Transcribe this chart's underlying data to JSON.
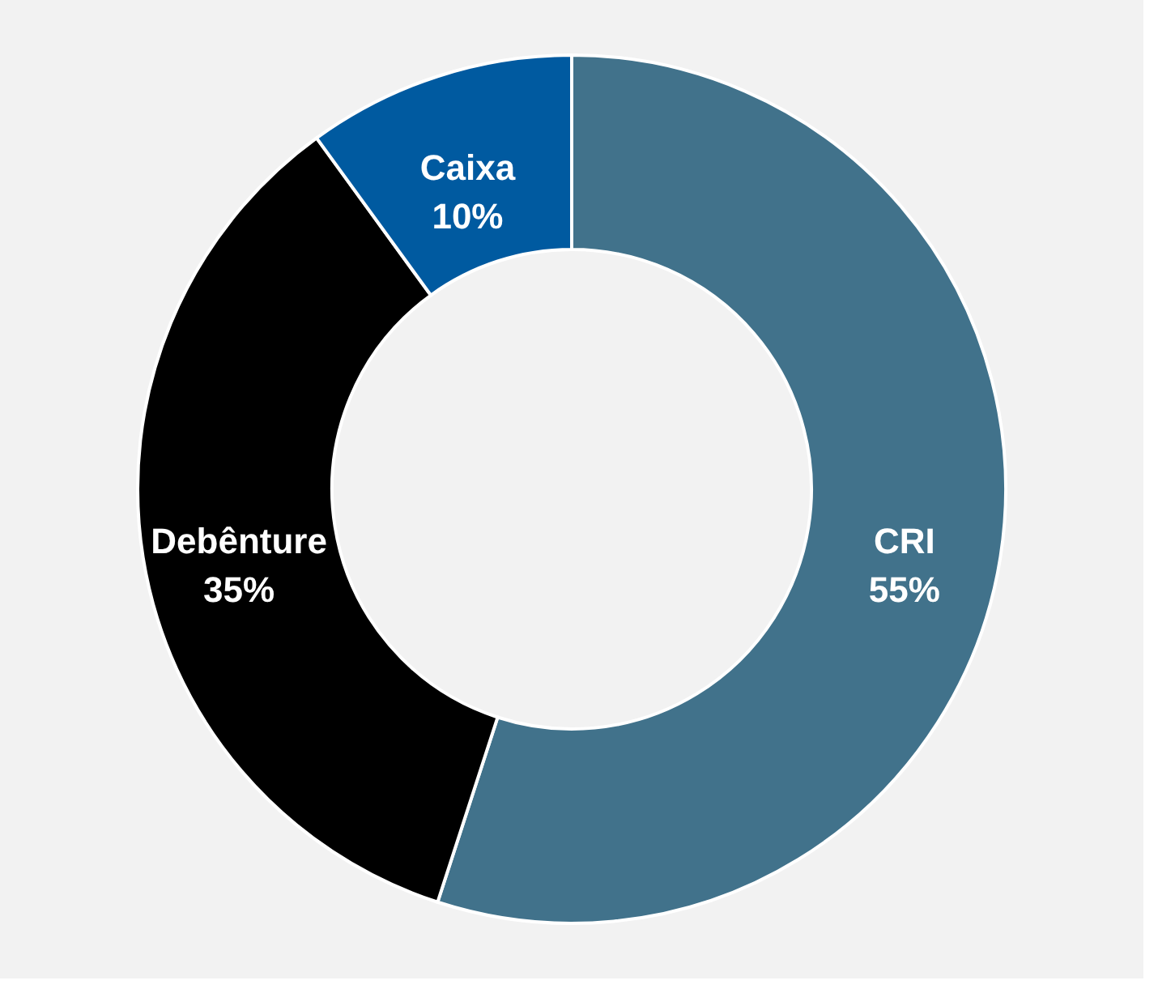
{
  "chart_data": {
    "type": "donut",
    "categories": [
      "CRI",
      "Debênture",
      "Caixa"
    ],
    "values": [
      55,
      35,
      10
    ],
    "colors": [
      "#41728b",
      "#000000",
      "#005aa0"
    ],
    "value_labels": [
      "55%",
      "35%",
      "10%"
    ]
  }
}
